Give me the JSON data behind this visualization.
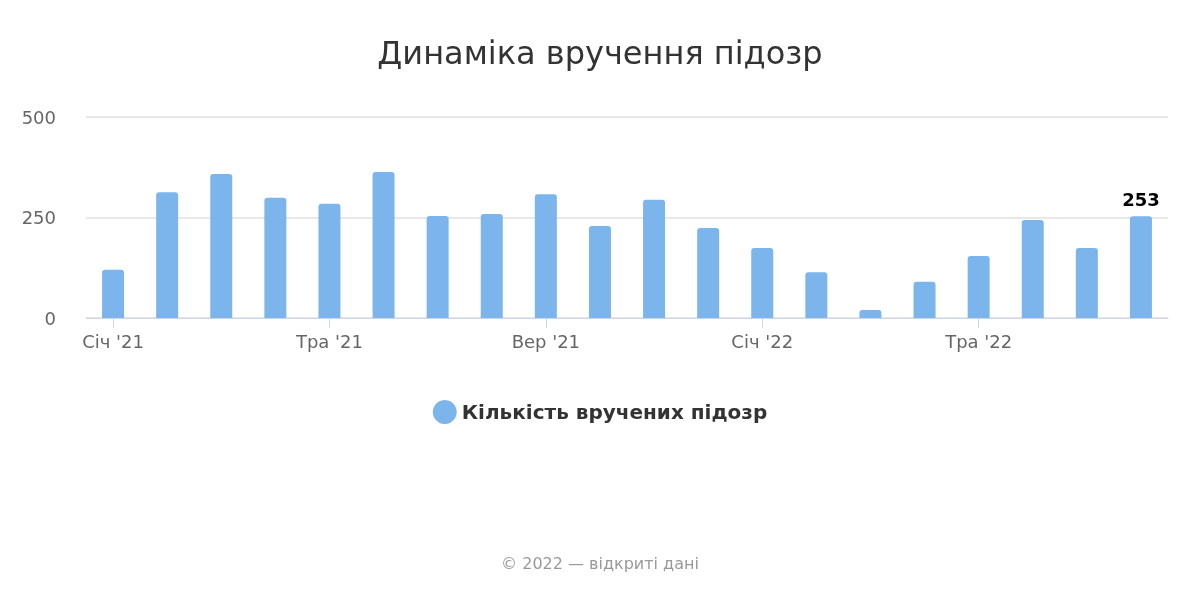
{
  "chart_data": {
    "type": "bar",
    "title": "Динаміка вручення підозр",
    "categories": [
      "Січ '21",
      null,
      null,
      null,
      "Тра '21",
      null,
      null,
      null,
      "Вер '21",
      null,
      null,
      null,
      "Січ '22",
      null,
      null,
      null,
      "Тра '22",
      null,
      null,
      null
    ],
    "series": [
      {
        "name": "Кількість вручених підозр",
        "color": "#7cb5ec",
        "values": [
          120,
          313,
          358,
          299,
          284,
          363,
          254,
          259,
          308,
          229,
          294,
          224,
          174,
          114,
          20,
          90,
          154,
          244,
          174,
          253
        ],
        "value_labels": [
          null,
          null,
          null,
          null,
          null,
          null,
          null,
          null,
          null,
          null,
          null,
          null,
          null,
          null,
          null,
          null,
          null,
          null,
          null,
          "253"
        ]
      }
    ],
    "ylim": [
      0,
      500
    ],
    "yticks": [
      0,
      250,
      500
    ],
    "grid": "y",
    "legend": "bottom",
    "annotations": [
      "© 2022 — відкриті дані"
    ]
  }
}
